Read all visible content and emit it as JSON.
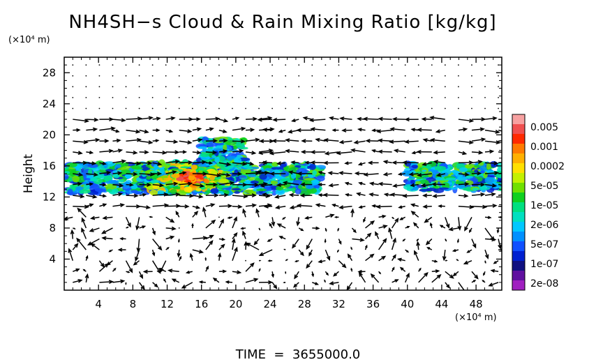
{
  "chart_data": {
    "type": "heatmap",
    "title": "NH4SH−s Cloud & Rain Mixing Ratio [kg/kg]",
    "ylabel": "Height",
    "x_unit": "(×10⁴ m)",
    "y_unit": "(×10⁴ m)",
    "footer": "TIME  =  3655000.0",
    "xlim": [
      0,
      51
    ],
    "ylim": [
      0,
      30
    ],
    "x_ticks": [
      4,
      8,
      12,
      16,
      20,
      24,
      28,
      32,
      36,
      40,
      44,
      48
    ],
    "y_ticks": [
      4,
      8,
      12,
      16,
      20,
      24,
      28
    ],
    "grid": false,
    "vectors": true,
    "colorbar": {
      "labels": [
        "0.005",
        "0.001",
        "0.0002",
        "5e-05",
        "1e-05",
        "2e-06",
        "5e-07",
        "1e-07",
        "2e-08"
      ],
      "colors": [
        "#f7a1a1",
        "#f05050",
        "#ff2a00",
        "#ff7a00",
        "#ffb000",
        "#ffe000",
        "#c4f000",
        "#70e000",
        "#10d020",
        "#00e080",
        "#00e0c0",
        "#00c8ff",
        "#0090ff",
        "#1050ff",
        "#0020d0",
        "#101080",
        "#6010a0",
        "#a020c0"
      ]
    },
    "cloud_regions": [
      {
        "x_range": [
          0,
          30
        ],
        "y_range": [
          12.5,
          16.3
        ],
        "level": "1e-07 to 5e-05"
      },
      {
        "x_range": [
          10,
          19
        ],
        "y_range": [
          12.5,
          16.5
        ],
        "level": "2e-06 to 0.001",
        "peak": {
          "x": 16,
          "y": 13.5,
          "value": "0.001"
        }
      },
      {
        "x_range": [
          16,
          21
        ],
        "y_range": [
          16,
          19.5
        ],
        "level": "1e-07 to 1e-05"
      },
      {
        "x_range": [
          40,
          51
        ],
        "y_range": [
          12.8,
          16.3
        ],
        "level": "1e-07 to 1e-05"
      }
    ]
  }
}
